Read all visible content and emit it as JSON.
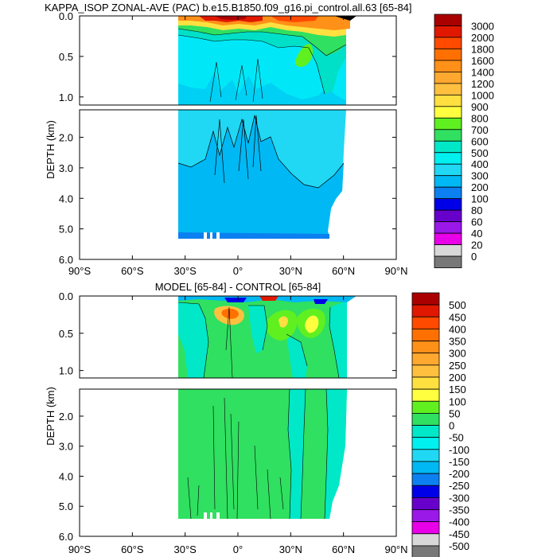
{
  "chart_data": [
    {
      "type": "contour",
      "title": "KAPPA_ISOP ZONAL-AVE (PAC) b.e15.B1850.f09_g16.pi_control.all.63 [65-84]",
      "ylabel": "DEPTH (km)",
      "xlabel": "",
      "x_ticks": [
        "90°S",
        "60°S",
        "30°S",
        "0°",
        "30°N",
        "60°N",
        "90°N"
      ],
      "xlim": [
        -90,
        90
      ],
      "upper_depth_ticks": [
        "0.0",
        "0.5",
        "1.0"
      ],
      "upper_ylim": [
        0,
        1.1
      ],
      "lower_depth_ticks": [
        "2.0",
        "3.0",
        "4.0",
        "5.0",
        "6.0"
      ],
      "lower_ylim": [
        1.1,
        6.0
      ],
      "data_extent": {
        "lat_min": -34,
        "lat_max": 64,
        "max_depth_km": 5.35
      },
      "colorbar_levels": [
        "3000",
        "2000",
        "1800",
        "1600",
        "1400",
        "1200",
        "1000",
        "900",
        "800",
        "700",
        "600",
        "500",
        "400",
        "300",
        "200",
        "100",
        "80",
        "60",
        "40",
        "20",
        "0"
      ],
      "colorbar_colors": [
        "#aa0000",
        "#e01800",
        "#ff4a00",
        "#ff7000",
        "#ff9018",
        "#ffa830",
        "#ffc040",
        "#ffe040",
        "#ffff40",
        "#60f020",
        "#30e060",
        "#00e8c8",
        "#00f0f0",
        "#20d8f4",
        "#00b8f4",
        "#0c80f0",
        "#0000e8",
        "#6800cc",
        "#9a18e8",
        "#e800e8",
        "#d8d8d8",
        "#787878"
      ]
    },
    {
      "type": "contour",
      "title": "MODEL [65-84] - CONTROL [65-84]",
      "ylabel": "DEPTH (km)",
      "xlabel": "",
      "x_ticks": [
        "90°S",
        "60°S",
        "30°S",
        "0°",
        "30°N",
        "60°N",
        "90°N"
      ],
      "xlim": [
        -90,
        90
      ],
      "upper_depth_ticks": [
        "0.0",
        "0.5",
        "1.0"
      ],
      "upper_ylim": [
        0,
        1.1
      ],
      "lower_depth_ticks": [
        "2.0",
        "3.0",
        "4.0",
        "5.0",
        "6.0"
      ],
      "lower_ylim": [
        1.1,
        6.0
      ],
      "data_extent": {
        "lat_min": -34,
        "lat_max": 64,
        "max_depth_km": 5.35
      },
      "colorbar_levels": [
        "500",
        "450",
        "400",
        "350",
        "300",
        "250",
        "200",
        "150",
        "100",
        "50",
        "0",
        "-50",
        "-100",
        "-150",
        "-200",
        "-250",
        "-300",
        "-350",
        "-400",
        "-450",
        "-500"
      ],
      "colorbar_colors": [
        "#aa0000",
        "#e01800",
        "#ff4a00",
        "#ff7000",
        "#ff9018",
        "#ffa830",
        "#ffc040",
        "#ffe040",
        "#ffff40",
        "#60f020",
        "#30e060",
        "#00e8c8",
        "#00f0f0",
        "#20d8f4",
        "#00b8f4",
        "#0c80f0",
        "#0000e8",
        "#6800cc",
        "#9a18e8",
        "#e800e8",
        "#d8d8d8",
        "#787878"
      ]
    }
  ]
}
